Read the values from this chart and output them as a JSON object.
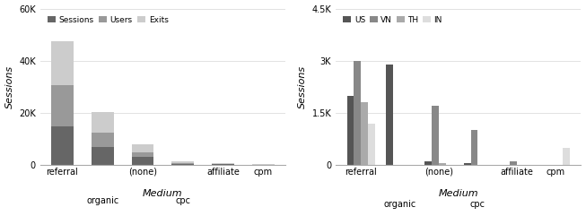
{
  "chart1": {
    "categories": [
      "referral",
      "organic",
      "(none)",
      "cpc",
      "affiliate",
      "cpm"
    ],
    "sessions": [
      15000,
      7000,
      3000,
      500,
      300,
      100
    ],
    "users": [
      15500,
      5500,
      2000,
      300,
      200,
      100
    ],
    "exits": [
      17000,
      8000,
      3000,
      500,
      300,
      100
    ],
    "colors": [
      "#666666",
      "#999999",
      "#cccccc"
    ],
    "legend_labels": [
      "Sessions",
      "Users",
      "Exits"
    ],
    "ylabel": "Sessions",
    "xlabel": "Medium",
    "ylim": [
      0,
      60000
    ],
    "yticks": [
      0,
      20000,
      40000,
      60000
    ],
    "ytick_labels": [
      "0",
      "20K",
      "40K",
      "60K"
    ]
  },
  "chart2": {
    "categories": [
      "referral",
      "organic",
      "(none)",
      "cpc",
      "affiliate",
      "cpm"
    ],
    "US": [
      2000,
      2900,
      100,
      50,
      0,
      0
    ],
    "VN": [
      3000,
      0,
      1700,
      1000,
      100,
      0
    ],
    "TH": [
      1800,
      0,
      50,
      0,
      0,
      0
    ],
    "IN": [
      1200,
      0,
      0,
      0,
      0,
      500
    ],
    "colors": [
      "#555555",
      "#888888",
      "#aaaaaa",
      "#dddddd"
    ],
    "legend_labels": [
      "US",
      "VN",
      "TH",
      "IN"
    ],
    "ylabel": "Sessions",
    "xlabel": "Medium",
    "ylim": [
      0,
      4500
    ],
    "yticks": [
      0,
      1500,
      3000,
      4500
    ],
    "ytick_labels": [
      "0",
      "1.5K",
      "3K",
      "4.5K"
    ]
  },
  "bg_color": "#ffffff",
  "grid_color": "#dddddd"
}
